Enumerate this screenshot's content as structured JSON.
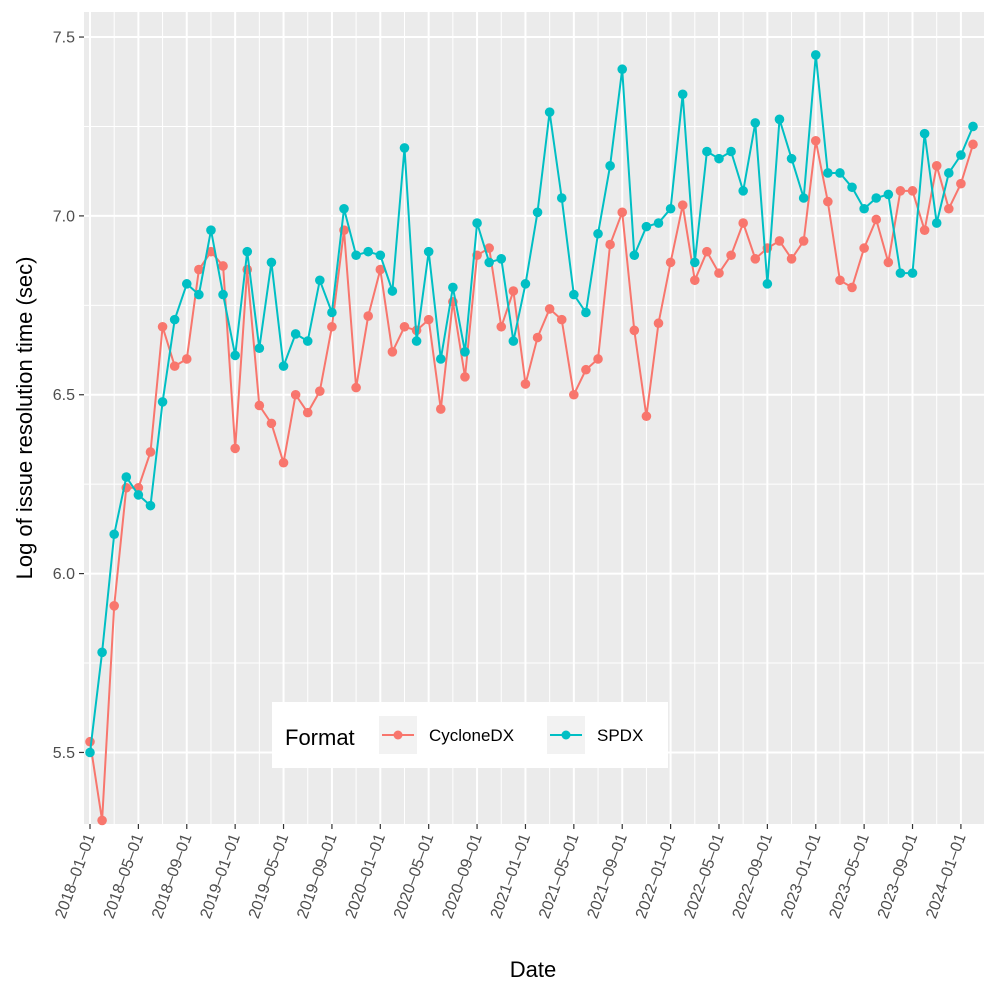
{
  "chart_data": {
    "type": "line",
    "title": "",
    "xlabel": "Date",
    "ylabel": "Log of issue resolution time (sec)",
    "ylim": [
      5.3,
      7.57
    ],
    "yticks": [
      5.5,
      6.0,
      6.5,
      7.0,
      7.5
    ],
    "ytick_labels": [
      "5.5",
      "6.0",
      "6.5",
      "7.0",
      "7.5"
    ],
    "xtick_labels": [
      "2018–01–01",
      "2018–05–01",
      "2018–09–01",
      "2019–01–01",
      "2019–05–01",
      "2019–09–01",
      "2020–01–01",
      "2020–05–01",
      "2020–09–01",
      "2021–01–01",
      "2021–05–01",
      "2021–09–01",
      "2022–01–01",
      "2022–05–01",
      "2022–09–01",
      "2023–01–01",
      "2023–05–01",
      "2023–09–01",
      "2024–01–01"
    ],
    "x_start": "2018-01",
    "x_end": "2024-02",
    "legend": {
      "title": "Format",
      "position": "bottom-center"
    },
    "series": [
      {
        "name": "CycloneDX",
        "color": "#F8766D",
        "values": [
          5.53,
          5.31,
          5.91,
          6.24,
          6.24,
          6.34,
          6.69,
          6.58,
          6.6,
          6.85,
          6.9,
          6.86,
          6.35,
          6.85,
          6.47,
          6.42,
          6.31,
          6.5,
          6.45,
          6.51,
          6.69,
          6.96,
          6.52,
          6.72,
          6.85,
          6.62,
          6.69,
          6.68,
          6.71,
          6.46,
          6.76,
          6.55,
          6.89,
          6.91,
          6.69,
          6.79,
          6.53,
          6.66,
          6.74,
          6.71,
          6.5,
          6.57,
          6.6,
          6.92,
          7.01,
          6.68,
          6.44,
          6.7,
          6.87,
          7.03,
          6.82,
          6.9,
          6.84,
          6.89,
          6.98,
          6.88,
          6.91,
          6.93,
          6.88,
          6.93,
          7.21,
          7.04,
          6.82,
          6.8,
          6.91,
          6.99,
          6.87,
          7.07,
          7.07,
          6.96,
          7.14,
          7.02,
          7.09,
          7.2
        ]
      },
      {
        "name": "SPDX",
        "color": "#00BFC4",
        "values": [
          5.5,
          5.78,
          6.11,
          6.27,
          6.22,
          6.19,
          6.48,
          6.71,
          6.81,
          6.78,
          6.96,
          6.78,
          6.61,
          6.9,
          6.63,
          6.87,
          6.58,
          6.67,
          6.65,
          6.82,
          6.73,
          7.02,
          6.89,
          6.9,
          6.89,
          6.79,
          7.19,
          6.65,
          6.9,
          6.6,
          6.8,
          6.62,
          6.98,
          6.87,
          6.88,
          6.65,
          6.81,
          7.01,
          7.29,
          7.05,
          6.78,
          6.73,
          6.95,
          7.14,
          7.41,
          6.89,
          6.97,
          6.98,
          7.02,
          7.34,
          6.87,
          7.18,
          7.16,
          7.18,
          7.07,
          7.26,
          6.81,
          7.27,
          7.16,
          7.05,
          7.45,
          7.12,
          7.12,
          7.08,
          7.02,
          7.05,
          7.06,
          6.84,
          6.84,
          7.23,
          6.98,
          7.12,
          7.17,
          7.25
        ]
      }
    ]
  }
}
